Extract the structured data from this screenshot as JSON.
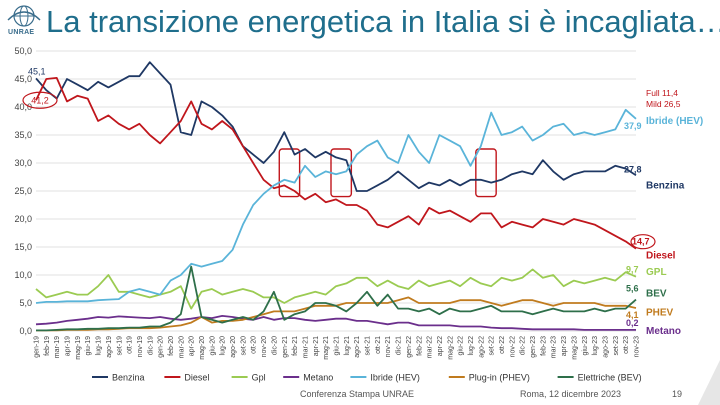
{
  "header": {
    "title": "La transizione energetica in Italia si è incagliata…",
    "logo_text": "UNRAE"
  },
  "footer": {
    "left": "Conferenza Stampa UNRAE",
    "right": "Roma, 12 dicembre 2023",
    "page": "19"
  },
  "note": {
    "full": "Full 11,4",
    "mild": "Mild 26,5"
  },
  "chart_data": {
    "type": "line",
    "title": "La transizione energetica in Italia si è incagliata…",
    "ylim": [
      0,
      50
    ],
    "yticks": [
      "0,0",
      "5,0",
      "10,0",
      "15,0",
      "20,0",
      "25,0",
      "30,0",
      "35,0",
      "40,0",
      "45,0",
      "50,0"
    ],
    "categories": [
      "gen-19",
      "feb-19",
      "mar-19",
      "apr-19",
      "mag-19",
      "giu-19",
      "lug-19",
      "ago-19",
      "set-19",
      "ott-19",
      "nov-19",
      "dic-19",
      "gen-20",
      "feb-20",
      "mar-20",
      "apr-20",
      "mag-20",
      "giu-20",
      "lug-20",
      "ago-20",
      "set-20",
      "ott-20",
      "nov-20",
      "dic-20",
      "gen-21",
      "feb-21",
      "mar-21",
      "apr-21",
      "mag-21",
      "giu-21",
      "lug-21",
      "ago-21",
      "set-21",
      "ott-21",
      "nov-21",
      "dic-21",
      "gen-22",
      "feb-22",
      "mar-22",
      "apr-22",
      "mag-22",
      "giu-22",
      "lug-22",
      "ago-22",
      "set-22",
      "ott-22",
      "nov-22",
      "dic-22",
      "gen-23",
      "feb-23",
      "mar-23",
      "apr-23",
      "mag-23",
      "giu-23",
      "lug-23",
      "ago-23",
      "set-23",
      "ott-23",
      "nov-23"
    ],
    "series": [
      {
        "name": "Benzina",
        "color": "#1f3864",
        "end_label": "27,8",
        "series_label": "Benzina",
        "values": [
          45.1,
          43,
          41.5,
          45,
          44,
          43,
          44.5,
          43.5,
          44.5,
          45.5,
          45.5,
          48,
          46,
          44,
          35.5,
          35,
          41,
          40,
          38.5,
          36.5,
          33,
          31.5,
          30,
          32,
          35.5,
          31.5,
          32.5,
          31,
          32,
          31,
          30.5,
          25,
          25,
          26,
          27,
          28.5,
          27,
          25.5,
          26.5,
          26,
          27,
          26,
          27,
          27,
          26.5,
          27,
          28,
          28.5,
          28,
          30.5,
          28.5,
          27,
          28,
          28.5,
          28.5,
          28.5,
          29.5,
          29,
          27.8
        ]
      },
      {
        "name": "Diesel",
        "color": "#c0161c",
        "end_label": "14,7",
        "series_label": "Diesel",
        "values": [
          41.2,
          45,
          45.2,
          41,
          42,
          41.5,
          37.5,
          38.5,
          37,
          36,
          37,
          35,
          33.5,
          35.5,
          37.5,
          41,
          37,
          36,
          37.5,
          36,
          33,
          30,
          27,
          25.5,
          26,
          25,
          23.5,
          24.5,
          23,
          23.5,
          22.5,
          22.5,
          21.5,
          19,
          18.5,
          19.5,
          20.5,
          19,
          22,
          21,
          21.5,
          20.5,
          19.5,
          21,
          21,
          18.5,
          19.5,
          19,
          18.5,
          20,
          19.5,
          19,
          20,
          19.5,
          19,
          18,
          17,
          16,
          14.7
        ]
      },
      {
        "name": "Gpl",
        "color": "#9bcb52",
        "end_label": "9,7",
        "series_label": "GPL",
        "values": [
          7.5,
          6,
          6.5,
          7,
          6.5,
          6.5,
          8,
          10,
          7,
          7,
          6.5,
          6,
          6.5,
          7,
          8,
          4,
          7,
          7.5,
          6.5,
          7,
          7.5,
          7,
          6,
          6,
          5,
          6,
          6.5,
          7,
          6.5,
          8,
          8.5,
          9.5,
          9.5,
          8,
          9,
          8,
          7.5,
          9,
          8,
          8.5,
          9,
          8,
          9.5,
          8.5,
          8,
          9.5,
          9,
          9.5,
          11,
          9.5,
          10,
          8,
          9,
          8.5,
          9,
          9.5,
          9,
          10.5,
          9.7
        ]
      },
      {
        "name": "Metano",
        "color": "#6b2f8c",
        "end_label": "0,2",
        "series_label": "Metano",
        "values": [
          1.2,
          1.3,
          1.5,
          1.8,
          2,
          2.2,
          2.5,
          2.4,
          2.6,
          2.5,
          2.4,
          2.3,
          2.5,
          2.2,
          2,
          2.2,
          2.5,
          2.3,
          2.7,
          2.5,
          2.2,
          2,
          2.5,
          2,
          2.3,
          2.3,
          2,
          1.8,
          2,
          2.2,
          2.2,
          1.8,
          1.8,
          1.5,
          1.2,
          1.5,
          1.5,
          1,
          1,
          1,
          1,
          0.8,
          0.8,
          0.8,
          0.6,
          0.5,
          0.5,
          0.4,
          0.3,
          0.3,
          0.3,
          0.3,
          0.3,
          0.2,
          0.2,
          0.2,
          0.2,
          0.2,
          0.2
        ]
      },
      {
        "name": "Ibride (HEV)",
        "color": "#5ab4d9",
        "end_label": "37,9",
        "series_label": "Ibride (HEV)",
        "values": [
          5,
          5.2,
          5.2,
          5.3,
          5.3,
          5.3,
          5.5,
          5.6,
          5.7,
          7,
          7.5,
          7,
          6.5,
          9,
          10,
          12,
          11.5,
          12,
          12.5,
          14.5,
          19,
          22.5,
          24.5,
          26,
          27,
          26.5,
          29.5,
          27.5,
          28.5,
          28,
          28.5,
          31.5,
          33,
          34,
          31,
          30,
          35,
          32,
          30,
          35,
          34,
          33,
          29.5,
          33,
          39,
          35,
          35.5,
          36.5,
          34,
          35,
          36.5,
          37,
          35,
          35.5,
          35,
          35.5,
          36,
          39.5,
          37.9
        ]
      },
      {
        "name": "Plug-in (PHEV)",
        "color": "#c07b1e",
        "end_label": "4,1",
        "series_label": "PHEV",
        "values": [
          0.1,
          0.1,
          0.1,
          0.2,
          0.2,
          0.2,
          0.3,
          0.3,
          0.4,
          0.5,
          0.5,
          0.5,
          0.6,
          0.8,
          1,
          1.5,
          2.5,
          1.5,
          1.8,
          1.8,
          2,
          2.5,
          3,
          3.5,
          3.5,
          3.5,
          4,
          4.5,
          4.5,
          4.5,
          5,
          5,
          5,
          5,
          5,
          5.5,
          6,
          5,
          5,
          5,
          5,
          5.5,
          5.5,
          5.5,
          5,
          4.5,
          5,
          5.5,
          5.5,
          5,
          4.5,
          5,
          5,
          5,
          5,
          4.5,
          4.5,
          4.5,
          4.1
        ]
      },
      {
        "name": "Elettriche (BEV)",
        "color": "#2e6f4a",
        "end_label": "5,6",
        "series_label": "BEV",
        "values": [
          0.1,
          0.1,
          0.2,
          0.3,
          0.3,
          0.4,
          0.4,
          0.5,
          0.5,
          0.6,
          0.6,
          0.8,
          0.8,
          1.5,
          3,
          11.5,
          2.5,
          2,
          1.5,
          2,
          2.5,
          2,
          3.5,
          7,
          2,
          3,
          3.5,
          5,
          5,
          4.5,
          3.5,
          5,
          7,
          4.5,
          6.5,
          4,
          4,
          3.5,
          4,
          3,
          4,
          3.5,
          3.5,
          4,
          4.5,
          3.5,
          3.5,
          3.5,
          3,
          3.5,
          4,
          3.5,
          3.5,
          3.5,
          4,
          3.5,
          4,
          4,
          5.6
        ]
      }
    ]
  }
}
